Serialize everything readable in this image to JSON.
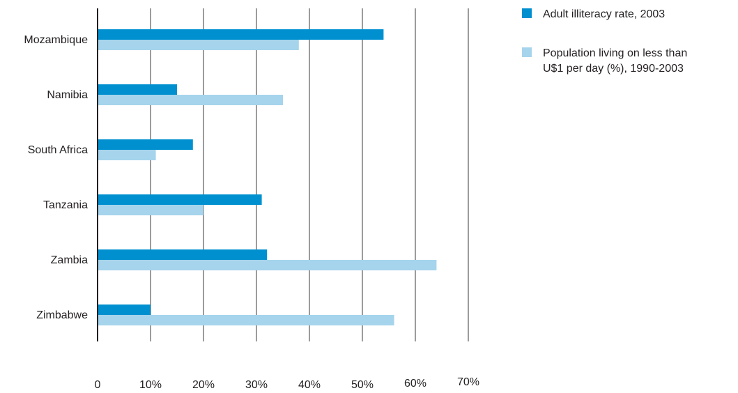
{
  "chart_data": {
    "type": "bar",
    "orientation": "horizontal",
    "categories": [
      "Mozambique",
      "Namibia",
      "South Africa",
      "Tanzania",
      "Zambia",
      "Zimbabwe"
    ],
    "series": [
      {
        "name": "Adult illiteracy rate, 2003",
        "values": [
          54,
          15,
          18,
          31,
          32,
          10
        ],
        "color": "#0090d0"
      },
      {
        "name_lines": [
          "Population living on less than",
          "U$1 per day (%), 1990-2003"
        ],
        "values": [
          38,
          35,
          11,
          20,
          64,
          56
        ],
        "color": "#a5d4ec"
      }
    ],
    "x_ticks": [
      "0",
      "10%",
      "20%",
      "30%",
      "40%",
      "50%",
      "60%",
      "70%"
    ],
    "xlim": [
      0,
      70
    ],
    "grid": true,
    "legend_position": "top-right"
  }
}
